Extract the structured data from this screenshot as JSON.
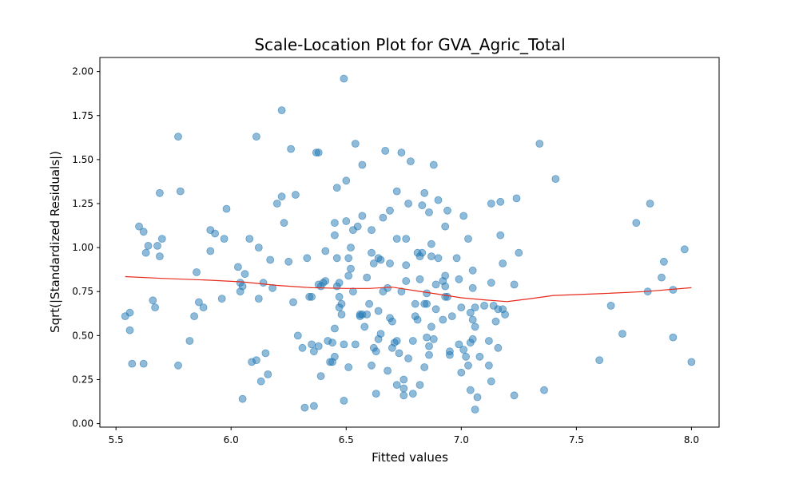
{
  "chart_data": {
    "type": "scatter",
    "title": "Scale-Location Plot for GVA_Agric_Total",
    "xlabel": "Fitted values",
    "ylabel": "Sqrt(|Standardized Residuals|)",
    "xlim": [
      5.43,
      8.12
    ],
    "ylim": [
      -0.02,
      2.08
    ],
    "xticks": [
      "5.5",
      "6.0",
      "6.5",
      "7.0",
      "7.5",
      "8.0"
    ],
    "yticks": [
      "0.00",
      "0.25",
      "0.50",
      "0.75",
      "1.00",
      "1.25",
      "1.50",
      "1.75",
      "2.00"
    ],
    "grid": false,
    "point_color": "#1f77b4",
    "line_color": "#e8291c",
    "points": [
      [
        5.54,
        0.61
      ],
      [
        5.56,
        0.53
      ],
      [
        5.56,
        0.63
      ],
      [
        5.57,
        0.34
      ],
      [
        5.6,
        1.12
      ],
      [
        5.62,
        1.09
      ],
      [
        5.62,
        0.34
      ],
      [
        5.63,
        0.97
      ],
      [
        5.64,
        1.01
      ],
      [
        5.66,
        0.7
      ],
      [
        5.67,
        0.66
      ],
      [
        5.68,
        1.01
      ],
      [
        5.69,
        0.95
      ],
      [
        5.69,
        1.31
      ],
      [
        5.7,
        1.05
      ],
      [
        5.77,
        0.33
      ],
      [
        5.77,
        1.63
      ],
      [
        5.78,
        1.32
      ],
      [
        5.82,
        0.47
      ],
      [
        5.84,
        0.61
      ],
      [
        5.85,
        0.86
      ],
      [
        5.86,
        0.69
      ],
      [
        5.88,
        0.66
      ],
      [
        5.91,
        1.1
      ],
      [
        5.91,
        0.98
      ],
      [
        5.93,
        1.08
      ],
      [
        5.96,
        0.71
      ],
      [
        5.97,
        1.05
      ],
      [
        5.98,
        1.22
      ],
      [
        6.03,
        0.89
      ],
      [
        6.04,
        0.75
      ],
      [
        6.04,
        0.8
      ],
      [
        6.05,
        0.14
      ],
      [
        6.05,
        0.78
      ],
      [
        6.06,
        0.85
      ],
      [
        6.08,
        1.05
      ],
      [
        6.09,
        0.35
      ],
      [
        6.11,
        0.36
      ],
      [
        6.11,
        1.63
      ],
      [
        6.12,
        1.0
      ],
      [
        6.12,
        0.71
      ],
      [
        6.13,
        0.24
      ],
      [
        6.14,
        0.8
      ],
      [
        6.15,
        0.4
      ],
      [
        6.16,
        0.28
      ],
      [
        6.17,
        0.93
      ],
      [
        6.18,
        0.77
      ],
      [
        6.2,
        1.25
      ],
      [
        6.22,
        1.78
      ],
      [
        6.22,
        1.29
      ],
      [
        6.23,
        1.14
      ],
      [
        6.25,
        0.92
      ],
      [
        6.26,
        1.56
      ],
      [
        6.27,
        0.69
      ],
      [
        6.28,
        1.3
      ],
      [
        6.29,
        0.5
      ],
      [
        6.31,
        0.43
      ],
      [
        6.32,
        0.09
      ],
      [
        6.33,
        0.94
      ],
      [
        6.34,
        0.72
      ],
      [
        6.35,
        0.45
      ],
      [
        6.35,
        0.72
      ],
      [
        6.36,
        0.41
      ],
      [
        6.36,
        0.1
      ],
      [
        6.37,
        1.54
      ],
      [
        6.38,
        1.54
      ],
      [
        6.38,
        0.79
      ],
      [
        6.38,
        0.44
      ],
      [
        6.39,
        0.78
      ],
      [
        6.39,
        0.27
      ],
      [
        6.4,
        0.8
      ],
      [
        6.41,
        0.81
      ],
      [
        6.41,
        0.98
      ],
      [
        6.42,
        0.47
      ],
      [
        6.43,
        0.35
      ],
      [
        6.44,
        0.35
      ],
      [
        6.44,
        0.46
      ],
      [
        6.45,
        0.54
      ],
      [
        6.45,
        0.38
      ],
      [
        6.45,
        1.07
      ],
      [
        6.45,
        1.14
      ],
      [
        6.46,
        0.94
      ],
      [
        6.46,
        1.34
      ],
      [
        6.46,
        0.78
      ],
      [
        6.47,
        0.72
      ],
      [
        6.47,
        0.8
      ],
      [
        6.47,
        0.66
      ],
      [
        6.48,
        0.68
      ],
      [
        6.48,
        0.62
      ],
      [
        6.49,
        0.45
      ],
      [
        6.49,
        1.96
      ],
      [
        6.49,
        0.13
      ],
      [
        6.5,
        1.15
      ],
      [
        6.5,
        1.38
      ],
      [
        6.51,
        0.94
      ],
      [
        6.51,
        0.32
      ],
      [
        6.51,
        0.84
      ],
      [
        6.52,
        1.0
      ],
      [
        6.52,
        0.88
      ],
      [
        6.53,
        0.75
      ],
      [
        6.53,
        1.1
      ],
      [
        6.54,
        1.59
      ],
      [
        6.54,
        0.45
      ],
      [
        6.55,
        1.12
      ],
      [
        6.56,
        0.62
      ],
      [
        6.56,
        0.61
      ],
      [
        6.57,
        1.47
      ],
      [
        6.57,
        0.62
      ],
      [
        6.57,
        1.18
      ],
      [
        6.58,
        0.55
      ],
      [
        6.59,
        0.62
      ],
      [
        6.59,
        0.83
      ],
      [
        6.6,
        0.68
      ],
      [
        6.61,
        0.33
      ],
      [
        6.61,
        0.97
      ],
      [
        6.61,
        1.1
      ],
      [
        6.62,
        0.43
      ],
      [
        6.62,
        0.91
      ],
      [
        6.63,
        0.17
      ],
      [
        6.63,
        0.41
      ],
      [
        6.64,
        0.94
      ],
      [
        6.64,
        0.64
      ],
      [
        6.64,
        0.48
      ],
      [
        6.65,
        0.51
      ],
      [
        6.65,
        0.93
      ],
      [
        6.66,
        1.17
      ],
      [
        6.66,
        0.75
      ],
      [
        6.67,
        1.55
      ],
      [
        6.68,
        0.3
      ],
      [
        6.68,
        0.77
      ],
      [
        6.69,
        0.91
      ],
      [
        6.69,
        0.6
      ],
      [
        6.69,
        1.21
      ],
      [
        6.7,
        0.58
      ],
      [
        6.7,
        0.43
      ],
      [
        6.71,
        0.46
      ],
      [
        6.72,
        0.22
      ],
      [
        6.72,
        1.05
      ],
      [
        6.72,
        1.32
      ],
      [
        6.72,
        0.47
      ],
      [
        6.73,
        0.4
      ],
      [
        6.74,
        0.75
      ],
      [
        6.74,
        1.54
      ],
      [
        6.75,
        0.25
      ],
      [
        6.75,
        0.2
      ],
      [
        6.75,
        0.16
      ],
      [
        6.76,
        0.9
      ],
      [
        6.76,
        0.81
      ],
      [
        6.76,
        1.05
      ],
      [
        6.77,
        1.25
      ],
      [
        6.77,
        0.37
      ],
      [
        6.78,
        1.49
      ],
      [
        6.79,
        0.17
      ],
      [
        6.79,
        0.47
      ],
      [
        6.8,
        0.68
      ],
      [
        6.8,
        0.61
      ],
      [
        6.81,
        0.97
      ],
      [
        6.81,
        0.59
      ],
      [
        6.82,
        0.22
      ],
      [
        6.82,
        0.82
      ],
      [
        6.82,
        0.95
      ],
      [
        6.83,
        0.97
      ],
      [
        6.83,
        1.24
      ],
      [
        6.84,
        0.32
      ],
      [
        6.84,
        0.68
      ],
      [
        6.84,
        1.31
      ],
      [
        6.85,
        0.74
      ],
      [
        6.85,
        0.68
      ],
      [
        6.85,
        0.49
      ],
      [
        6.86,
        0.44
      ],
      [
        6.86,
        0.39
      ],
      [
        6.86,
        1.2
      ],
      [
        6.87,
        0.55
      ],
      [
        6.87,
        0.95
      ],
      [
        6.87,
        1.02
      ],
      [
        6.88,
        0.48
      ],
      [
        6.88,
        1.47
      ],
      [
        6.89,
        0.79
      ],
      [
        6.89,
        0.65
      ],
      [
        6.9,
        1.27
      ],
      [
        6.9,
        0.94
      ],
      [
        6.92,
        0.59
      ],
      [
        6.92,
        0.81
      ],
      [
        6.93,
        0.84
      ],
      [
        6.93,
        0.78
      ],
      [
        6.93,
        1.12
      ],
      [
        6.93,
        0.72
      ],
      [
        6.94,
        0.72
      ],
      [
        6.94,
        1.21
      ],
      [
        6.95,
        0.39
      ],
      [
        6.95,
        0.41
      ],
      [
        6.96,
        0.61
      ],
      [
        6.98,
        0.94
      ],
      [
        6.99,
        0.45
      ],
      [
        6.99,
        0.82
      ],
      [
        7.0,
        0.29
      ],
      [
        7.0,
        0.66
      ],
      [
        7.01,
        0.42
      ],
      [
        7.01,
        1.18
      ],
      [
        7.02,
        0.38
      ],
      [
        7.03,
        0.33
      ],
      [
        7.03,
        1.05
      ],
      [
        7.04,
        0.19
      ],
      [
        7.04,
        0.46
      ],
      [
        7.04,
        0.63
      ],
      [
        7.05,
        0.87
      ],
      [
        7.05,
        0.77
      ],
      [
        7.05,
        0.59
      ],
      [
        7.05,
        0.48
      ],
      [
        7.06,
        0.55
      ],
      [
        7.06,
        0.08
      ],
      [
        7.06,
        0.66
      ],
      [
        7.07,
        0.15
      ],
      [
        7.08,
        0.38
      ],
      [
        7.1,
        0.67
      ],
      [
        7.12,
        0.33
      ],
      [
        7.12,
        0.47
      ],
      [
        7.13,
        1.25
      ],
      [
        7.13,
        0.8
      ],
      [
        7.13,
        0.24
      ],
      [
        7.14,
        0.67
      ],
      [
        7.15,
        0.58
      ],
      [
        7.16,
        0.43
      ],
      [
        7.16,
        0.65
      ],
      [
        7.17,
        1.07
      ],
      [
        7.17,
        1.26
      ],
      [
        7.18,
        0.91
      ],
      [
        7.18,
        0.65
      ],
      [
        7.19,
        0.62
      ],
      [
        7.23,
        0.79
      ],
      [
        7.23,
        0.16
      ],
      [
        7.24,
        1.28
      ],
      [
        7.25,
        0.97
      ],
      [
        7.34,
        1.59
      ],
      [
        7.36,
        0.19
      ],
      [
        7.41,
        1.39
      ],
      [
        7.6,
        0.36
      ],
      [
        7.65,
        0.67
      ],
      [
        7.7,
        0.51
      ],
      [
        7.76,
        1.14
      ],
      [
        7.81,
        0.75
      ],
      [
        7.82,
        1.25
      ],
      [
        7.87,
        0.83
      ],
      [
        7.88,
        0.92
      ],
      [
        7.92,
        0.49
      ],
      [
        7.92,
        0.76
      ],
      [
        7.97,
        0.99
      ],
      [
        8.0,
        0.35
      ]
    ],
    "smooth_line": [
      [
        5.54,
        0.835
      ],
      [
        5.7,
        0.825
      ],
      [
        5.9,
        0.815
      ],
      [
        6.05,
        0.805
      ],
      [
        6.2,
        0.785
      ],
      [
        6.35,
        0.772
      ],
      [
        6.5,
        0.768
      ],
      [
        6.6,
        0.768
      ],
      [
        6.7,
        0.775
      ],
      [
        6.8,
        0.755
      ],
      [
        6.9,
        0.735
      ],
      [
        7.0,
        0.715
      ],
      [
        7.1,
        0.703
      ],
      [
        7.2,
        0.693
      ],
      [
        7.3,
        0.71
      ],
      [
        7.4,
        0.728
      ],
      [
        7.6,
        0.738
      ],
      [
        7.8,
        0.75
      ],
      [
        8.0,
        0.772
      ]
    ]
  }
}
